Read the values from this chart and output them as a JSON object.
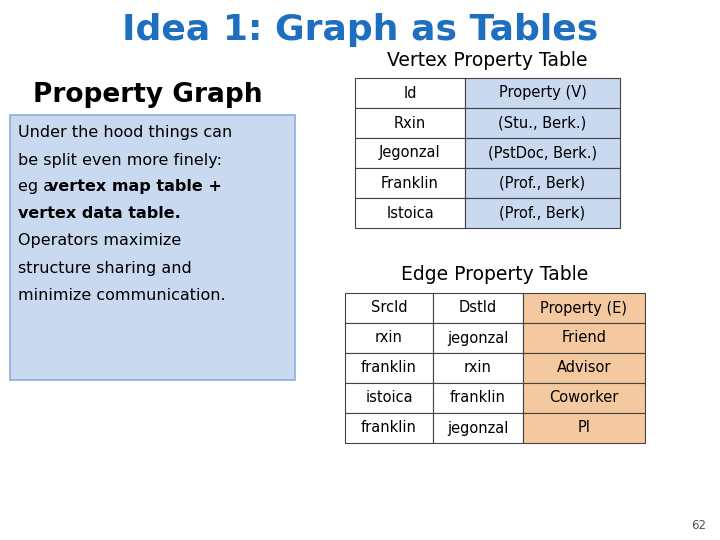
{
  "title": "Idea 1: Graph as Tables",
  "title_color": "#1E6FBF",
  "title_fontsize": 26,
  "bg_color": "#ffffff",
  "left_header": "Property Graph",
  "left_box_color": "#c8d9f0",
  "left_box_border": "#8ab0d8",
  "vertex_table_title": "Vertex Property Table",
  "vertex_header": [
    "Id",
    "Property (V)"
  ],
  "vertex_rows": [
    [
      "Rxin",
      "(Stu., Berk.)"
    ],
    [
      "Jegonzal",
      "(PstDoc, Berk.)"
    ],
    [
      "Franklin",
      "(Prof., Berk)"
    ],
    [
      "Istoica",
      "(Prof., Berk)"
    ]
  ],
  "vertex_col1_bg": "#ffffff",
  "vertex_col2_bg": "#c8d9f0",
  "vertex_border": "#444444",
  "edge_table_title": "Edge Property Table",
  "edge_header": [
    "SrcId",
    "DstId",
    "Property (E)"
  ],
  "edge_rows": [
    [
      "rxin",
      "jegonzal",
      "Friend"
    ],
    [
      "franklin",
      "rxin",
      "Advisor"
    ],
    [
      "istoica",
      "franklin",
      "Coworker"
    ],
    [
      "franklin",
      "jegonzal",
      "PI"
    ]
  ],
  "edge_col12_bg": "#ffffff",
  "edge_col3_bg": "#f5c9a0",
  "edge_border": "#444444",
  "page_number": "62"
}
